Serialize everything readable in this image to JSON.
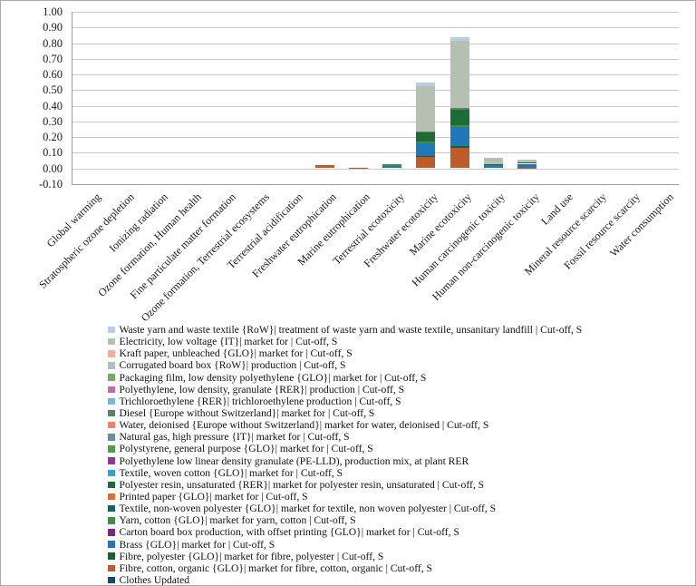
{
  "chart_data": {
    "type": "bar",
    "subtype": "stacked-column",
    "title": "",
    "xlabel": "",
    "ylabel": "",
    "ylim": [
      -0.1,
      1.0
    ],
    "ytick_step": 0.1,
    "ytick_labels": [
      "1.00",
      "0.90",
      "0.80",
      "0.70",
      "0.60",
      "0.50",
      "0.40",
      "0.30",
      "0.20",
      "0.10",
      "0.00",
      "-0.10"
    ],
    "grid": true,
    "legend_position": "bottom-left",
    "stacking_note": "series are stacked bottom-to-top in reverse legend order",
    "categories": [
      "Global warming",
      "Stratospheric ozone depletion",
      "Ionizing radiation",
      "Ozone formation, Human health",
      "Fine particulate matter formation",
      "Ozone formation, Terrestrial ecosystems",
      "Terrestrial acidification",
      "Freshwater eutrophication",
      "Marine eutrophication",
      "Terrestrial ecotoxicity",
      "Freshwater ecotoxicity",
      "Marine ecotoxicity",
      "Human carcinogenic toxicity",
      "Human non-carcinogenic toxicity",
      "Land use",
      "Mineral resource scarcity",
      "Fossil resource scarcity",
      "Water consumption"
    ],
    "series": [
      {
        "name": "Waste yarn and waste textile {RoW}| treatment of waste yarn and waste textile, unsanitary landfill | Cut-off, S",
        "color": "#B7CEE8",
        "values": [
          0,
          0,
          0,
          0,
          0,
          0,
          0,
          0,
          0,
          0,
          0.02,
          0.025,
          0,
          0,
          0,
          0,
          0,
          0
        ]
      },
      {
        "name": "Electricity, low voltage {IT}| market for | Cut-off, S",
        "color": "#B5C0B2",
        "values": [
          0,
          0,
          0,
          0,
          0,
          0,
          0,
          0,
          0,
          0,
          0.29,
          0.43,
          0.04,
          0.018,
          0,
          0,
          0,
          0
        ]
      },
      {
        "name": "Kraft paper, unbleached {GLO}| market for | Cut-off, S",
        "color": "#F2AE97",
        "values": [
          0,
          0,
          0,
          0,
          0,
          0,
          0,
          0,
          0,
          0,
          0,
          0,
          0,
          0,
          0,
          0,
          0,
          0
        ]
      },
      {
        "name": "Corrugated board box {RoW}| production | Cut-off, S",
        "color": "#B3BEC4",
        "values": [
          0,
          0,
          0,
          0,
          0,
          0,
          0,
          0,
          0,
          0,
          0,
          0,
          0,
          0,
          0,
          0,
          0,
          0
        ]
      },
      {
        "name": "Packaging film, low density polyethylene {GLO}| market for | Cut-off, S",
        "color": "#78A965",
        "values": [
          0,
          0,
          0,
          0,
          0,
          0,
          0,
          0,
          0,
          0,
          0,
          0,
          0,
          0,
          0,
          0,
          0,
          0
        ]
      },
      {
        "name": "Polyethylene, low density, granulate {RER}| production | Cut-off, S",
        "color": "#C468B4",
        "values": [
          0,
          0,
          0,
          0,
          0,
          0,
          0,
          0,
          0,
          0,
          0,
          0,
          0,
          0,
          0,
          0,
          0,
          0
        ]
      },
      {
        "name": "Trichloroethylene {RER}| trichloroethylene production | Cut-off, S",
        "color": "#7AB5E0",
        "values": [
          0,
          0,
          0,
          0,
          0,
          0,
          0,
          0,
          0,
          0,
          0,
          0,
          0,
          0,
          0,
          0,
          0,
          0
        ]
      },
      {
        "name": "Diesel {Europe without Switzerland}| market for | Cut-off, S",
        "color": "#5F8163",
        "values": [
          0,
          0,
          0,
          0,
          0,
          0,
          0,
          0,
          0,
          0,
          0.005,
          0.01,
          0,
          0,
          0,
          0,
          0,
          0
        ]
      },
      {
        "name": "Water, deionised {Europe without Switzerland}| market for water, deionised | Cut-off, S",
        "color": "#EF8365",
        "values": [
          0,
          0,
          0,
          0,
          0,
          0,
          0,
          0,
          0,
          0,
          0,
          0,
          0,
          0,
          0,
          0,
          0,
          0
        ]
      },
      {
        "name": "Natural gas, high pressure {IT}| market for | Cut-off, S",
        "color": "#6C8CA6",
        "values": [
          0,
          0,
          0,
          0,
          0,
          0,
          0,
          0,
          0,
          0,
          0,
          0,
          0,
          0,
          0,
          0,
          0,
          0
        ]
      },
      {
        "name": "Polystyrene, general purpose {GLO}| market for | Cut-off, S",
        "color": "#4F9C48",
        "values": [
          0,
          0,
          0,
          0,
          0,
          0,
          0,
          0,
          0,
          0,
          0,
          0,
          0,
          0,
          0,
          0,
          0,
          0
        ]
      },
      {
        "name": "Polyethylene low linear density granulate (PE-LLD), production mix, at plant RER",
        "color": "#8F3A96",
        "values": [
          0,
          0,
          0,
          0,
          0,
          0,
          0,
          0,
          0,
          0,
          0,
          0,
          0,
          0,
          0,
          0,
          0,
          0
        ]
      },
      {
        "name": "Textile, woven cotton {GLO}| market for | Cut-off, S",
        "color": "#2EA3DC",
        "values": [
          0,
          0,
          0,
          0,
          0,
          0,
          0,
          0,
          0,
          0,
          0,
          0,
          0,
          0,
          0,
          0,
          0,
          0
        ]
      },
      {
        "name": "Polyester resin, unsaturated {RER}| market for polyester resin, unsaturated | Cut-off, S",
        "color": "#1D6B35",
        "values": [
          0,
          0,
          0,
          0,
          0,
          0,
          0,
          0,
          0,
          0,
          0.06,
          0.1,
          0.008,
          0.008,
          0,
          0,
          0,
          0
        ]
      },
      {
        "name": "Printed paper {GLO}| market for | Cut-off, S",
        "color": "#E16D2B",
        "values": [
          0,
          0,
          0,
          0,
          0,
          0,
          0,
          0,
          0,
          0,
          0,
          0,
          0,
          0,
          0,
          0,
          0,
          0
        ]
      },
      {
        "name": "Textile, non-woven polyester {GLO}| market for textile, non woven polyester | Cut-off, S",
        "color": "#17606E",
        "values": [
          0,
          0,
          0,
          0,
          0,
          0,
          0,
          0,
          0,
          0,
          0,
          0,
          0,
          0,
          0,
          0,
          0,
          0
        ]
      },
      {
        "name": "Yarn, cotton {GLO}| market for yarn, cotton | Cut-off, S",
        "color": "#3E8E44",
        "values": [
          0,
          0,
          0,
          0,
          0,
          0,
          0,
          0,
          0,
          0.01,
          0.01,
          0.008,
          0,
          0,
          0,
          0,
          0,
          0
        ]
      },
      {
        "name": "Carton board box production, with offset printing {GLO}| market for | Cut-off, S",
        "color": "#7B2483",
        "values": [
          0,
          0,
          0,
          0,
          0,
          0,
          0,
          0,
          0,
          0,
          0,
          0,
          0,
          0,
          0,
          0,
          0,
          0
        ]
      },
      {
        "name": "Brass {GLO}| market for | Cut-off, S",
        "color": "#1F78B8",
        "values": [
          0,
          0,
          0,
          0,
          0,
          0,
          0,
          0,
          0,
          0.015,
          0.08,
          0.125,
          0.02,
          0.025,
          0,
          0,
          0,
          0
        ]
      },
      {
        "name": "Fibre, polyester {GLO}| market for fibre, polyester | Cut-off, S",
        "color": "#1B5E2F",
        "values": [
          0,
          0,
          0,
          0,
          0,
          0,
          0,
          0,
          0,
          0,
          0.005,
          0.01,
          0,
          0,
          0,
          0,
          0,
          0
        ]
      },
      {
        "name": "Fibre, cotton, organic {GLO}| market for fibre, cotton, organic | Cut-off, S",
        "color": "#C05A28",
        "values": [
          0,
          0,
          0,
          0,
          0,
          0,
          0,
          0.02,
          0.004,
          0,
          0.075,
          0.13,
          0,
          0.004,
          0,
          0,
          0,
          0
        ]
      },
      {
        "name": "Clothes Updated",
        "color": "#17496B",
        "values": [
          0,
          0,
          0,
          0,
          0,
          0,
          0,
          0,
          0,
          0,
          0,
          0,
          0,
          0,
          0,
          0,
          0,
          0
        ]
      }
    ]
  }
}
